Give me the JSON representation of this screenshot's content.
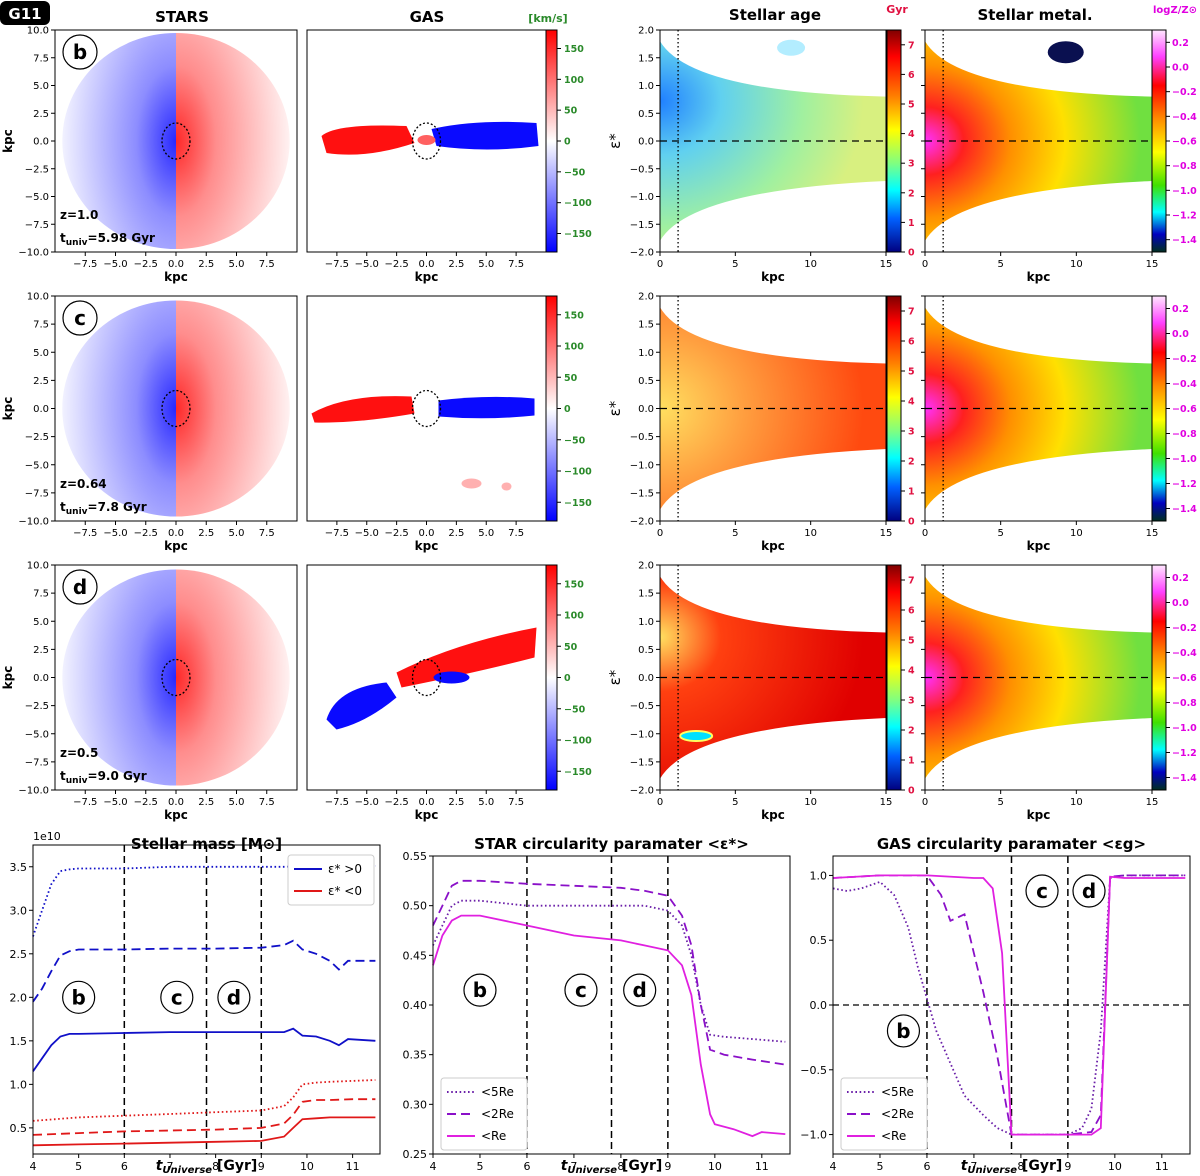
{
  "galaxy_label": "G11",
  "colors": {
    "rotation_neg": "#0000ff",
    "rotation_pos": "#ff0000",
    "kms_label": "#2a8a2a",
    "gyr_label": "#e01040",
    "metal_label": "#e000e0",
    "series_blue": "#1010c8",
    "series_red": "#e01818",
    "series_purple": "#6a1fa8",
    "series_violet": "#8a10c8",
    "series_magenta": "#e020e0"
  },
  "column_titles": {
    "stars": "STARS",
    "gas": "GAS",
    "age": "Stellar age",
    "metal": "Stellar metal."
  },
  "colorbar_units": {
    "velocity": "[km/s]",
    "age": "Gyr",
    "metal": "logZ/Z⊙"
  },
  "colorbar_ticks": {
    "velocity": [
      "150",
      "100",
      "50",
      "0",
      "−50",
      "−100",
      "−150"
    ],
    "age": [
      "7",
      "6",
      "5",
      "4",
      "3",
      "2",
      "1",
      "0"
    ],
    "metal": [
      "0.2",
      "0.0",
      "−0.2",
      "−0.4",
      "−0.6",
      "−0.8",
      "−1.0",
      "−1.2",
      "−1.4"
    ]
  },
  "map_axes": {
    "x_label": "kpc",
    "y_label": "kpc",
    "x_ticks": [
      "−7.5",
      "−5.0",
      "−2.5",
      "0.0",
      "2.5",
      "5.0",
      "7.5"
    ],
    "y_ticks": [
      "10.0",
      "7.5",
      "5.0",
      "2.5",
      "0.0",
      "−2.5",
      "−5.0",
      "−7.5",
      "−10.0"
    ]
  },
  "phase_axes": {
    "x_label": "kpc",
    "y_label": "ε*",
    "x_ticks": [
      "0",
      "5",
      "10",
      "15"
    ],
    "y_ticks": [
      "2.0",
      "1.5",
      "1.0",
      "0.5",
      "0.0",
      "−0.5",
      "−1.0",
      "−1.5",
      "−2.0"
    ]
  },
  "snapshots": [
    {
      "label": "b",
      "redshift": "z=1.0",
      "t_prefix": "t",
      "t_sub": "univ",
      "t_value": "=5.98 Gyr"
    },
    {
      "label": "c",
      "redshift": "z=0.64",
      "t_prefix": "t",
      "t_sub": "univ",
      "t_value": "=7.8 Gyr"
    },
    {
      "label": "d",
      "redshift": "z=0.5",
      "t_prefix": "t",
      "t_sub": "univ",
      "t_value": "=9.0 Gyr"
    }
  ],
  "chart_data": [
    {
      "type": "line",
      "title": "Stellar mass [M⊙]",
      "xlabel": "tUniverse [Gyr]",
      "xlabel_main": "t",
      "xlabel_sub": "Universe",
      "xlabel_unit": " [Gyr]",
      "ylabel": "",
      "scale_label": "1e10",
      "xlim": [
        4,
        11.6
      ],
      "ylim": [
        0.2,
        3.75
      ],
      "x_ticks": [
        4,
        5,
        6,
        7,
        8,
        9,
        10,
        11
      ],
      "y_ticks": [
        0.5,
        1.0,
        1.5,
        2.0,
        2.5,
        3.0,
        3.5
      ],
      "legend": {
        "position": "top-right",
        "entries": [
          {
            "label": "ε* >0",
            "color": "#1010c8"
          },
          {
            "label": "ε* <0",
            "color": "#e01818"
          }
        ]
      },
      "vlines": [
        6.0,
        7.8,
        9.0
      ],
      "markers": [
        {
          "label": "b",
          "x": 5.0,
          "y": 2.0
        },
        {
          "label": "c",
          "x": 7.15,
          "y": 2.0
        },
        {
          "label": "d",
          "x": 8.4,
          "y": 2.0
        }
      ],
      "series": [
        {
          "style": "dotted",
          "color": "#1010c8",
          "x": [
            4.0,
            4.2,
            4.4,
            4.6,
            4.8,
            5.0,
            6.0,
            7.0,
            8.0,
            9.0,
            9.5,
            10.0,
            11.0,
            11.5
          ],
          "y": [
            2.7,
            3.0,
            3.3,
            3.45,
            3.47,
            3.48,
            3.48,
            3.5,
            3.5,
            3.5,
            3.5,
            3.51,
            3.51,
            3.51
          ]
        },
        {
          "style": "dashed",
          "color": "#1010c8",
          "x": [
            4.0,
            4.2,
            4.4,
            4.6,
            4.8,
            5.0,
            6.0,
            7.0,
            8.0,
            9.0,
            9.5,
            9.7,
            9.9,
            10.2,
            10.5,
            10.7,
            10.9,
            11.5
          ],
          "y": [
            1.95,
            2.1,
            2.3,
            2.48,
            2.53,
            2.55,
            2.55,
            2.56,
            2.56,
            2.57,
            2.6,
            2.65,
            2.55,
            2.5,
            2.42,
            2.32,
            2.42,
            2.42
          ]
        },
        {
          "style": "solid",
          "color": "#1010c8",
          "x": [
            4.0,
            4.2,
            4.4,
            4.6,
            4.8,
            5.0,
            6.0,
            7.0,
            8.0,
            9.0,
            9.5,
            9.7,
            9.9,
            10.2,
            10.5,
            10.7,
            10.9,
            11.5
          ],
          "y": [
            1.15,
            1.3,
            1.45,
            1.55,
            1.58,
            1.58,
            1.59,
            1.6,
            1.6,
            1.6,
            1.6,
            1.64,
            1.56,
            1.55,
            1.5,
            1.45,
            1.52,
            1.5
          ]
        },
        {
          "style": "dotted",
          "color": "#e01818",
          "x": [
            4.0,
            5.0,
            6.0,
            7.0,
            8.0,
            9.0,
            9.5,
            9.7,
            9.9,
            10.2,
            10.5,
            11.0,
            11.5
          ],
          "y": [
            0.58,
            0.62,
            0.64,
            0.66,
            0.68,
            0.7,
            0.75,
            0.85,
            1.0,
            1.02,
            1.03,
            1.04,
            1.05
          ]
        },
        {
          "style": "dashed",
          "color": "#e01818",
          "x": [
            4.0,
            5.0,
            6.0,
            7.0,
            8.0,
            9.0,
            9.5,
            9.7,
            9.9,
            10.2,
            10.5,
            11.0,
            11.5
          ],
          "y": [
            0.42,
            0.44,
            0.46,
            0.47,
            0.48,
            0.5,
            0.55,
            0.65,
            0.8,
            0.82,
            0.82,
            0.83,
            0.83
          ]
        },
        {
          "style": "solid",
          "color": "#e01818",
          "x": [
            4.0,
            5.0,
            6.0,
            7.0,
            8.0,
            9.0,
            9.5,
            9.7,
            9.9,
            10.2,
            10.5,
            11.0,
            11.5
          ],
          "y": [
            0.3,
            0.31,
            0.32,
            0.33,
            0.34,
            0.35,
            0.4,
            0.5,
            0.6,
            0.61,
            0.62,
            0.62,
            0.62
          ]
        }
      ]
    },
    {
      "type": "line",
      "title": "STAR circularity paramater <ε*>",
      "xlabel": "tUniverse [Gyr]",
      "xlabel_main": "t",
      "xlabel_sub": "Universe",
      "xlabel_unit": " [Gyr]",
      "ylabel": "",
      "xlim": [
        4,
        11.6
      ],
      "ylim": [
        0.25,
        0.55
      ],
      "x_ticks": [
        4,
        5,
        6,
        7,
        8,
        9,
        10,
        11
      ],
      "y_ticks": [
        0.25,
        0.3,
        0.35,
        0.4,
        0.45,
        0.5,
        0.55
      ],
      "legend": {
        "position": "bottom-left",
        "entries": [
          {
            "label": "<5Re",
            "color": "#6a1fa8",
            "style": "dotted"
          },
          {
            "label": "<2Re",
            "color": "#8a10c8",
            "style": "dashed"
          },
          {
            "label": "<Re",
            "color": "#e020e0",
            "style": "solid"
          }
        ]
      },
      "vlines": [
        6.0,
        7.8,
        9.0
      ],
      "markers": [
        {
          "label": "b",
          "x": 5.0,
          "y": 0.415
        },
        {
          "label": "c",
          "x": 7.15,
          "y": 0.415
        },
        {
          "label": "d",
          "x": 8.4,
          "y": 0.415
        }
      ],
      "series": [
        {
          "name": "<5Re",
          "style": "dotted",
          "color": "#6a1fa8",
          "x": [
            4.0,
            4.2,
            4.4,
            4.6,
            5.0,
            6.0,
            7.0,
            8.0,
            8.5,
            9.0,
            9.3,
            9.5,
            9.7,
            9.9,
            10.2,
            11.0,
            11.5
          ],
          "y": [
            0.46,
            0.48,
            0.5,
            0.505,
            0.505,
            0.5,
            0.5,
            0.5,
            0.5,
            0.495,
            0.48,
            0.45,
            0.4,
            0.37,
            0.368,
            0.365,
            0.363
          ]
        },
        {
          "name": "<2Re",
          "style": "dashed",
          "color": "#8a10c8",
          "x": [
            4.0,
            4.2,
            4.4,
            4.6,
            5.0,
            6.0,
            7.0,
            8.0,
            8.5,
            9.0,
            9.3,
            9.5,
            9.7,
            9.9,
            10.2,
            10.8,
            11.5
          ],
          "y": [
            0.48,
            0.5,
            0.52,
            0.525,
            0.525,
            0.522,
            0.52,
            0.518,
            0.515,
            0.51,
            0.49,
            0.46,
            0.4,
            0.355,
            0.35,
            0.345,
            0.34
          ]
        },
        {
          "name": "<Re",
          "style": "solid",
          "color": "#e020e0",
          "x": [
            4.0,
            4.2,
            4.4,
            4.6,
            5.0,
            6.0,
            7.0,
            8.0,
            8.5,
            9.0,
            9.3,
            9.5,
            9.7,
            9.9,
            10.0,
            10.4,
            10.8,
            11.0,
            11.5
          ],
          "y": [
            0.44,
            0.47,
            0.485,
            0.49,
            0.49,
            0.48,
            0.47,
            0.465,
            0.46,
            0.455,
            0.44,
            0.41,
            0.34,
            0.29,
            0.28,
            0.275,
            0.268,
            0.272,
            0.27
          ]
        }
      ]
    },
    {
      "type": "line",
      "title": "GAS circularity paramater <εg>",
      "xlabel": "tUniverse [Gyr]",
      "xlabel_main": "t",
      "xlabel_sub": "Universe",
      "xlabel_unit": " [Gyr]",
      "ylabel": "",
      "xlim": [
        4,
        11.6
      ],
      "ylim": [
        -1.15,
        1.15
      ],
      "x_ticks": [
        4,
        5,
        6,
        7,
        8,
        9,
        10,
        11
      ],
      "y_ticks": [
        -1.0,
        -0.5,
        0.0,
        0.5,
        1.0
      ],
      "legend": {
        "position": "bottom-left",
        "entries": [
          {
            "label": "<5Re",
            "color": "#6a1fa8",
            "style": "dotted"
          },
          {
            "label": "<2Re",
            "color": "#8a10c8",
            "style": "dashed"
          },
          {
            "label": "<Re",
            "color": "#e020e0",
            "style": "solid"
          }
        ]
      },
      "vlines": [
        6.0,
        7.8,
        9.0
      ],
      "markers": [
        {
          "label": "b",
          "x": 5.5,
          "y": -0.2
        },
        {
          "label": "c",
          "x": 8.45,
          "y": 0.88
        },
        {
          "label": "d",
          "x": 9.45,
          "y": 0.88
        }
      ],
      "series": [
        {
          "name": "<5Re",
          "style": "dotted",
          "color": "#6a1fa8",
          "x": [
            4.0,
            4.3,
            4.6,
            5.0,
            5.3,
            5.6,
            5.8,
            6.0,
            6.2,
            6.5,
            6.8,
            7.2,
            7.5,
            7.8,
            8.0,
            9.0,
            9.3,
            9.5,
            9.7,
            9.9,
            10.2,
            11.5
          ],
          "y": [
            0.9,
            0.88,
            0.9,
            0.95,
            0.85,
            0.6,
            0.3,
            0.05,
            -0.2,
            -0.45,
            -0.7,
            -0.85,
            -0.95,
            -1.0,
            -1.0,
            -1.0,
            -0.95,
            -0.8,
            -0.2,
            0.98,
            1.0,
            1.0
          ]
        },
        {
          "name": "<2Re",
          "style": "dashed",
          "color": "#8a10c8",
          "x": [
            4.0,
            5.0,
            6.0,
            6.3,
            6.5,
            6.8,
            7.0,
            7.2,
            7.5,
            7.7,
            7.8,
            8.0,
            9.0,
            9.5,
            9.7,
            9.9,
            10.2,
            11.5
          ],
          "y": [
            0.98,
            1.0,
            1.0,
            0.85,
            0.65,
            0.7,
            0.4,
            0.1,
            -0.4,
            -0.8,
            -1.0,
            -1.0,
            -1.0,
            -0.98,
            -0.85,
            0.99,
            1.0,
            1.0
          ]
        },
        {
          "name": "<Re",
          "style": "solid",
          "color": "#e020e0",
          "x": [
            4.0,
            5.0,
            6.0,
            7.0,
            7.2,
            7.4,
            7.6,
            7.7,
            7.8,
            8.0,
            9.0,
            9.5,
            9.7,
            9.9,
            10.2,
            11.5
          ],
          "y": [
            0.98,
            1.0,
            1.0,
            0.98,
            0.98,
            0.9,
            0.4,
            -0.3,
            -1.0,
            -1.0,
            -1.0,
            -1.0,
            -0.95,
            0.99,
            0.98,
            0.98
          ]
        }
      ]
    }
  ]
}
